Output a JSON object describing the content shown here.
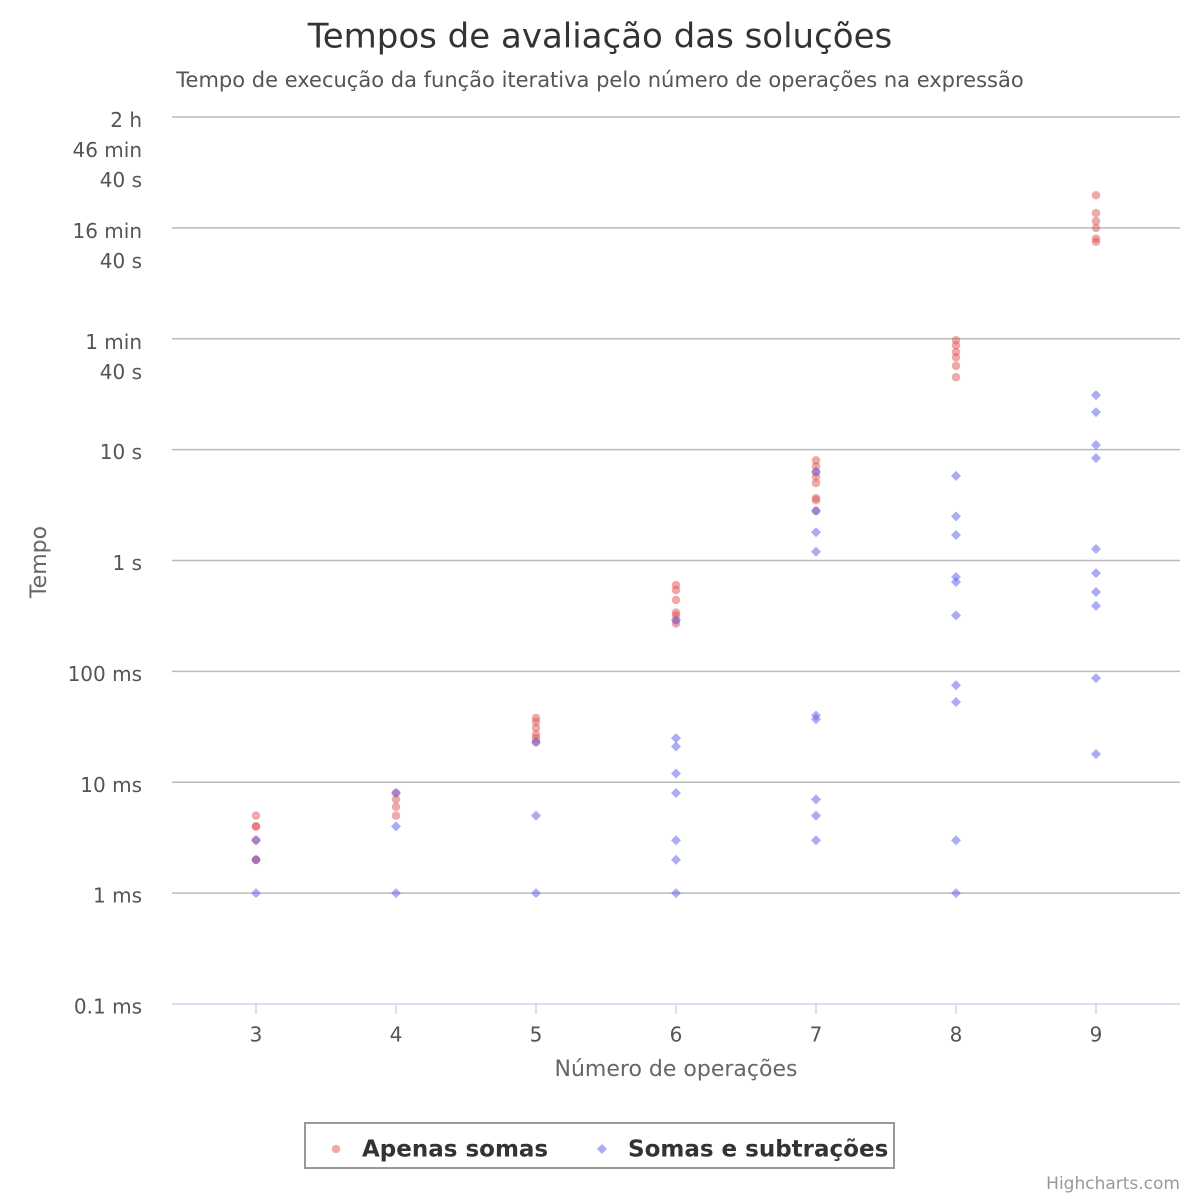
{
  "chart_data": {
    "type": "scatter",
    "log_y": true,
    "grid": true,
    "title": "Tempos de avaliação das soluções",
    "subtitle": "Tempo de execução da função iterativa pelo número de operações na expressão",
    "x_label": "Número de operações",
    "y_label": "Tempo",
    "credits": "Highcharts.com",
    "legend": "bottom",
    "xlim": [
      2.4,
      9.6
    ],
    "xticks": [
      3,
      4,
      5,
      6,
      7,
      8,
      9
    ],
    "ylim": [
      0.1,
      10000000
    ],
    "yticks": [
      {
        "value": 0.1,
        "label": "0.1 ms"
      },
      {
        "value": 1,
        "label": "1 ms"
      },
      {
        "value": 10,
        "label": "10 ms"
      },
      {
        "value": 100,
        "label": "100 ms"
      },
      {
        "value": 1000,
        "label": "1 s"
      },
      {
        "value": 10000,
        "label": "10 s"
      },
      {
        "value": 100000,
        "label": "1 min\n40 s"
      },
      {
        "value": 1000000,
        "label": "16 min\n40 s"
      },
      {
        "value": 10000000,
        "label": "2 h\n46 min\n40 s"
      }
    ],
    "series": [
      {
        "name": "Apenas somas",
        "color": "#df5353",
        "marker": "circle",
        "x": [
          3,
          3,
          3,
          3,
          3,
          3,
          4,
          4,
          4,
          4,
          5,
          5,
          5,
          5,
          5,
          5,
          6,
          6,
          6,
          6,
          6,
          6,
          6,
          7,
          7,
          7,
          7,
          7,
          7,
          7,
          7,
          8,
          8,
          8,
          8,
          8,
          8,
          9,
          9,
          9,
          9,
          9,
          9
        ],
        "values": [
          5,
          4,
          4,
          3,
          2,
          2,
          8,
          7,
          6,
          5,
          38,
          35,
          31,
          27,
          25,
          23,
          600,
          540,
          440,
          340,
          320,
          290,
          270,
          8000,
          7100,
          6300,
          5700,
          5000,
          3650,
          3500,
          2800,
          97000,
          87000,
          76000,
          68000,
          57000,
          45000,
          1970000,
          1360000,
          1150000,
          1000000,
          800000,
          750000
        ]
      },
      {
        "name": "Somas e subtrações",
        "color": "#6666ee",
        "marker": "diamond",
        "x": [
          3,
          3,
          3,
          4,
          4,
          4,
          5,
          5,
          5,
          6,
          6,
          6,
          6,
          6,
          6,
          6,
          6,
          7,
          7,
          7,
          7,
          7,
          7,
          7,
          7,
          7,
          8,
          8,
          8,
          8,
          8,
          8,
          8,
          8,
          8,
          8,
          9,
          9,
          9,
          9,
          9,
          9,
          9,
          9,
          9,
          9
        ],
        "values": [
          1,
          3,
          2,
          1,
          4,
          8,
          1,
          5,
          23,
          1,
          2,
          3,
          8,
          12,
          21,
          25,
          290,
          3,
          5,
          7,
          37,
          40,
          1200,
          1800,
          2800,
          6300,
          1,
          3,
          53,
          75,
          320,
          640,
          710,
          1700,
          2500,
          5800,
          18,
          87,
          390,
          520,
          770,
          1270,
          8400,
          11000,
          21800,
          31000
        ]
      }
    ]
  }
}
